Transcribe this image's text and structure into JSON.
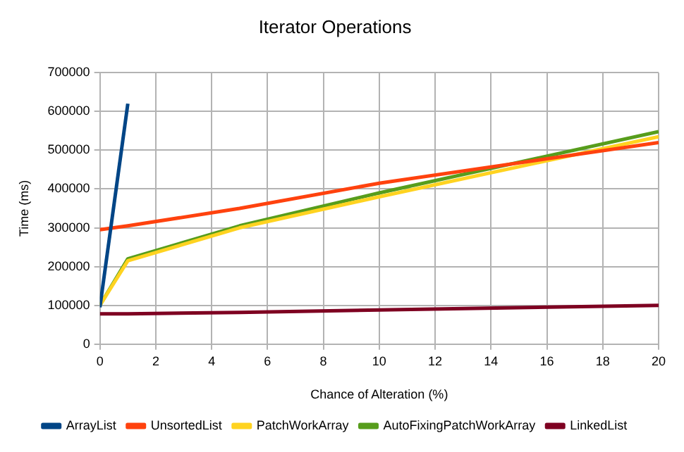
{
  "chart_data": {
    "type": "line",
    "title": "Iterator Operations",
    "xlabel": "Chance of Alteration (%)",
    "ylabel": "Time (ms)",
    "xlim": [
      0,
      20
    ],
    "xticks": [
      0,
      2,
      4,
      6,
      8,
      10,
      12,
      14,
      16,
      18,
      20
    ],
    "ylim": [
      0,
      700000
    ],
    "yticks": [
      0,
      100000,
      200000,
      300000,
      400000,
      500000,
      600000,
      700000
    ],
    "grid": true,
    "legend": "bottom",
    "marker": "none",
    "series": [
      {
        "name": "ArrayList",
        "color": "#004586",
        "x": [
          0,
          1
        ],
        "values": [
          95000,
          620000
        ]
      },
      {
        "name": "UnsortedList",
        "color": "#ff420e",
        "x": [
          0,
          1,
          5,
          10,
          20
        ],
        "values": [
          295000,
          305000,
          350000,
          415000,
          520000
        ]
      },
      {
        "name": "PatchWorkArray",
        "color": "#ffd320",
        "x": [
          0,
          1,
          5,
          10,
          20
        ],
        "values": [
          100000,
          215000,
          300000,
          380000,
          535000
        ]
      },
      {
        "name": "AutoFixingPatchWorkArray",
        "color": "#579d1c",
        "x": [
          0,
          1,
          5,
          10,
          20
        ],
        "values": [
          100000,
          220000,
          305000,
          390000,
          548000
        ]
      },
      {
        "name": "LinkedList",
        "color": "#7e0021",
        "x": [
          0,
          1,
          5,
          10,
          20
        ],
        "values": [
          78000,
          78000,
          82000,
          88000,
          100000
        ]
      }
    ]
  }
}
